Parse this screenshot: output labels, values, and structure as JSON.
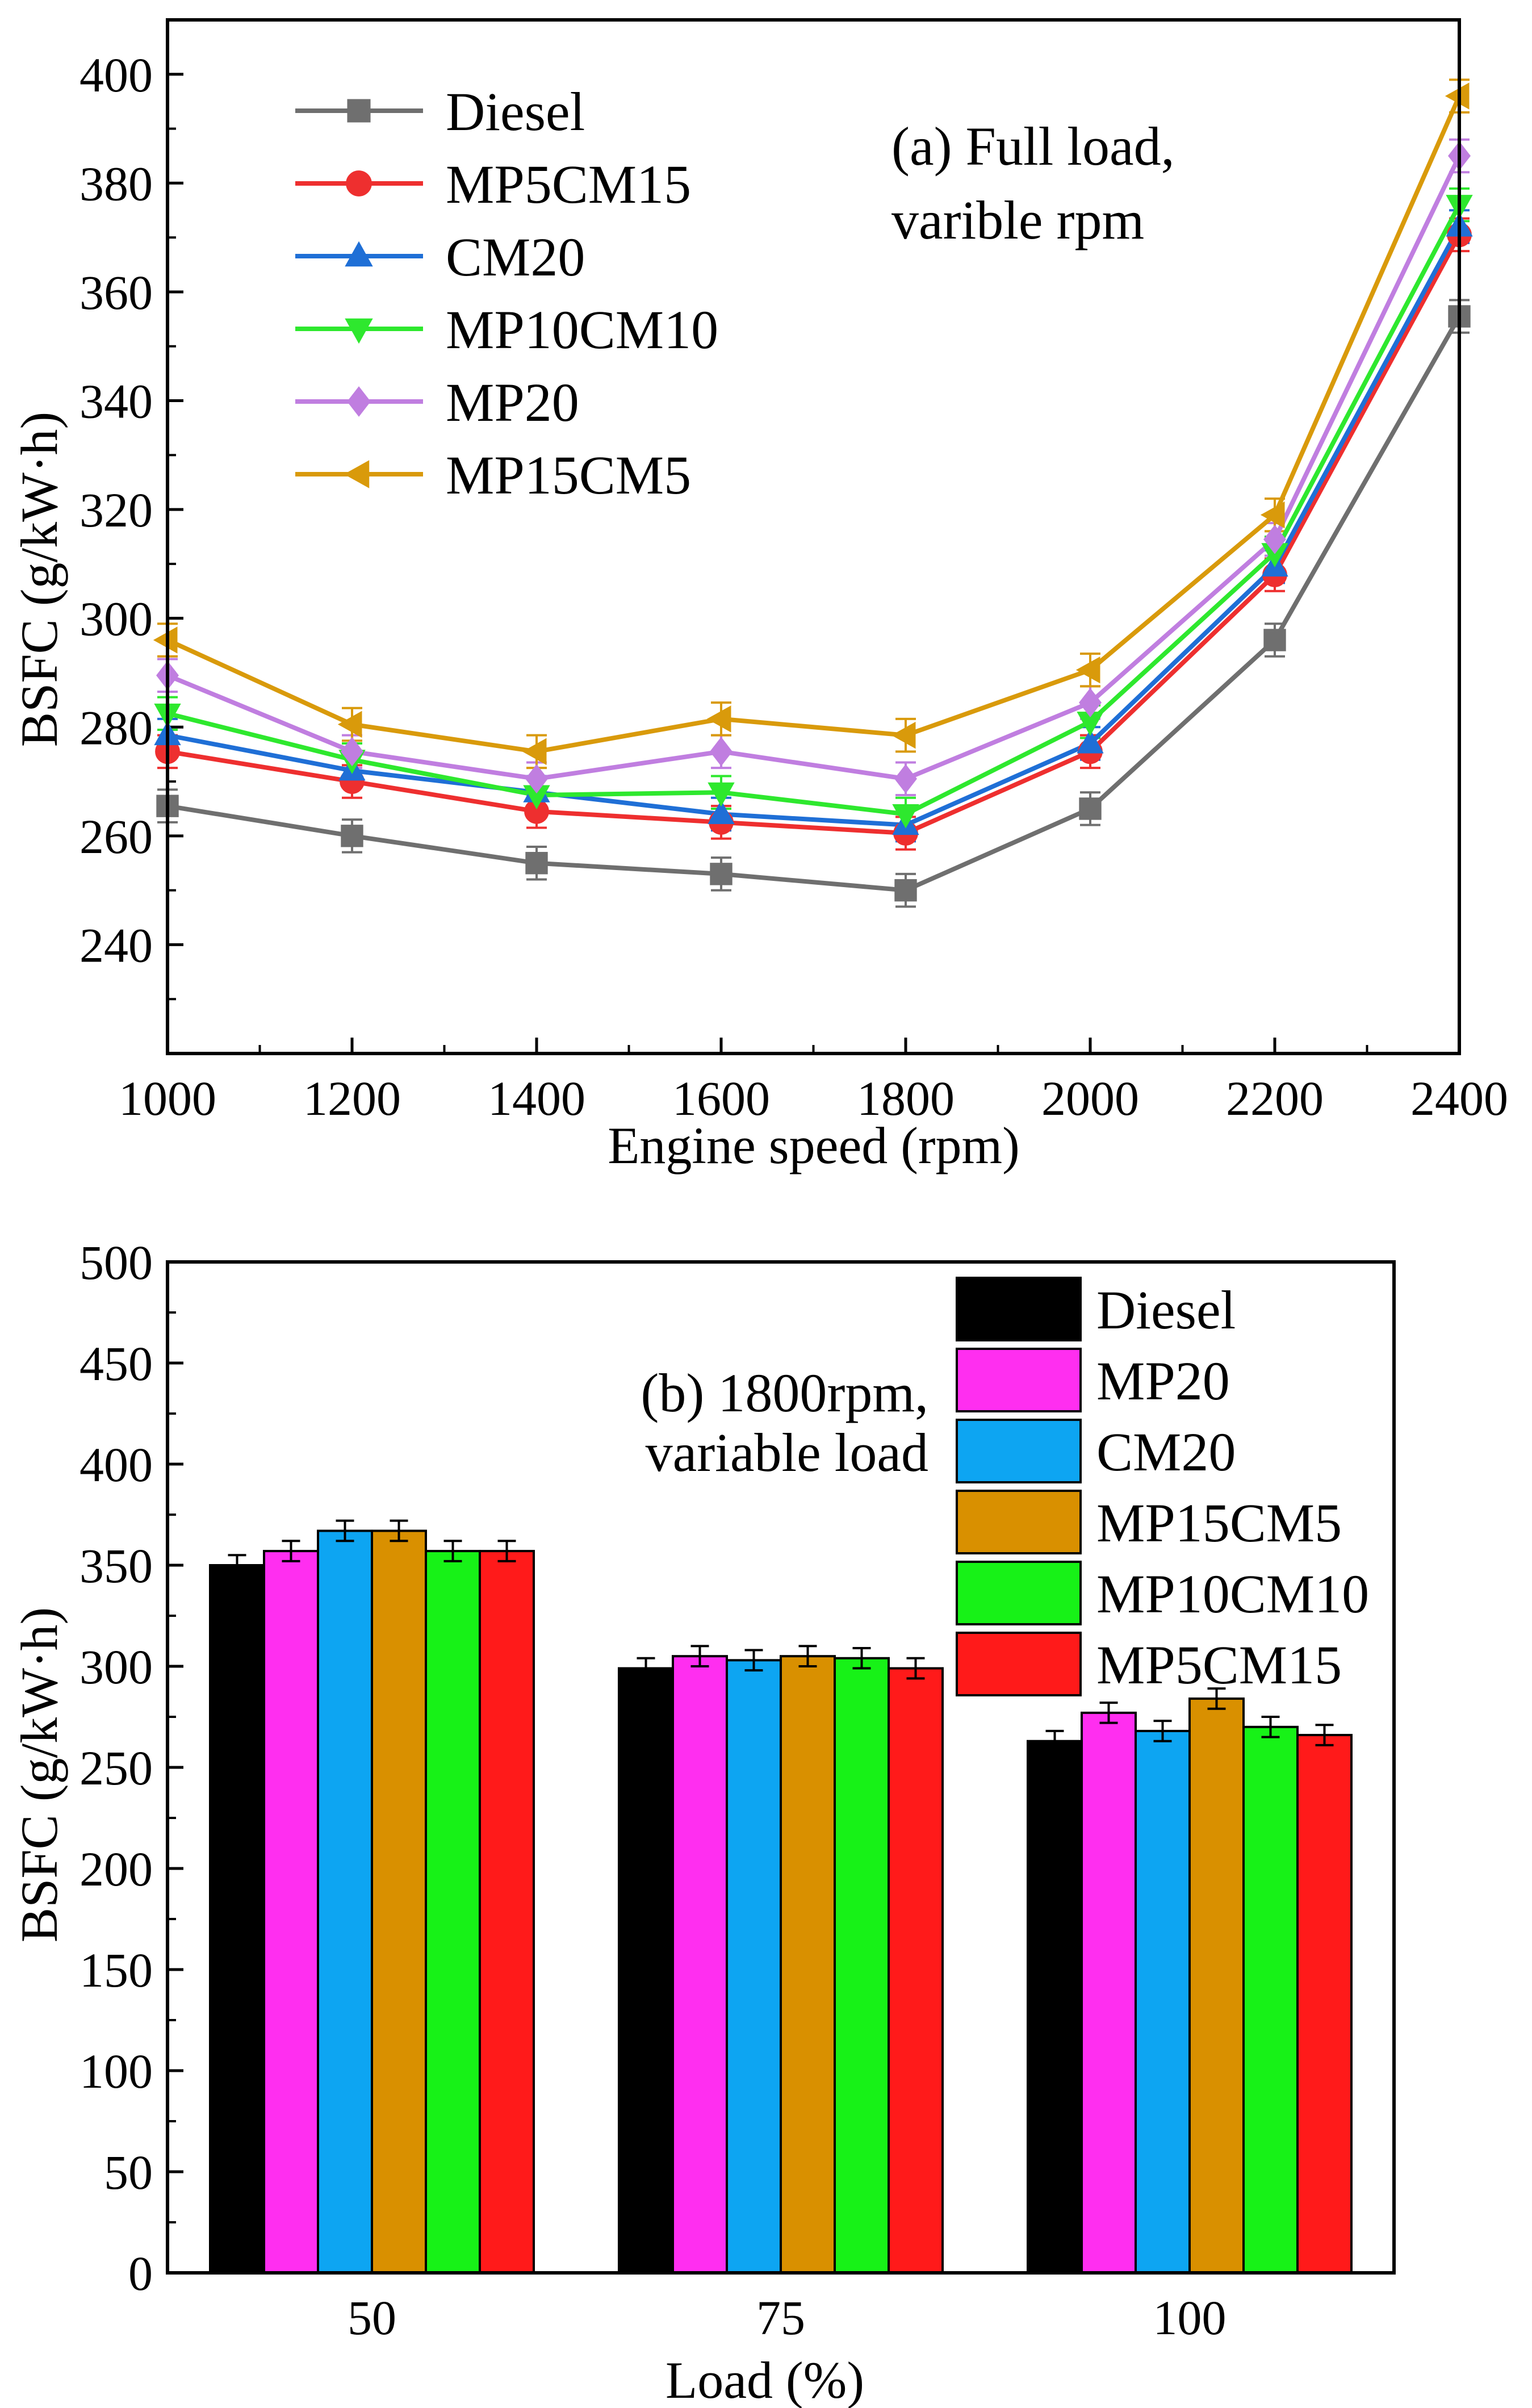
{
  "chart_data": [
    {
      "type": "line",
      "annotation": [
        "(a) Full load,",
        "varible rpm"
      ],
      "xlabel": "Engine speed (rpm)",
      "ylabel": "BSFC (g/kW·h)",
      "x": [
        1000,
        1200,
        1400,
        1600,
        1800,
        2000,
        2200,
        2400
      ],
      "xlim": [
        1000,
        2400
      ],
      "ylim": [
        220,
        410
      ],
      "xticks": [
        "1000",
        "1200",
        "1400",
        "1600",
        "1800",
        "2000",
        "2200",
        "2400"
      ],
      "yticks": [
        "240",
        "260",
        "280",
        "300",
        "320",
        "340",
        "360",
        "380",
        "400"
      ],
      "error": 3,
      "legend_position": "top-left",
      "series": [
        {
          "name": "Diesel",
          "color": "#6f6f6f",
          "marker": "square",
          "values": [
            265.5,
            260,
            255,
            253,
            250,
            265,
            296,
            355.5
          ]
        },
        {
          "name": "MP5CM15",
          "color": "#ee2f2f",
          "marker": "circle",
          "values": [
            275.5,
            270,
            264.5,
            262.5,
            260.5,
            275.5,
            308,
            370.5
          ]
        },
        {
          "name": "CM20",
          "color": "#1f6fd6",
          "marker": "triangle-up",
          "values": [
            278.5,
            272,
            268,
            264,
            262,
            277,
            309.5,
            372
          ]
        },
        {
          "name": "MP10CM10",
          "color": "#2ee82e",
          "marker": "triangle-down",
          "values": [
            282.5,
            274,
            267.5,
            268,
            264,
            281,
            312,
            376
          ]
        },
        {
          "name": "MP20",
          "color": "#c07ee0",
          "marker": "diamond",
          "values": [
            289.5,
            275.5,
            270.5,
            275.5,
            270.5,
            284.5,
            314.5,
            385
          ]
        },
        {
          "name": "MP15CM5",
          "color": "#d99a0b",
          "marker": "triangle-left",
          "values": [
            296,
            280.5,
            275.5,
            281.5,
            278.5,
            290.5,
            319,
            396
          ]
        }
      ]
    },
    {
      "type": "bar",
      "annotation": [
        "(b) 1800rpm,",
        "variable load"
      ],
      "xlabel": "Load (%)",
      "ylabel": "BSFC (g/kW·h)",
      "categories": [
        "50",
        "75",
        "100"
      ],
      "ylim": [
        0,
        500
      ],
      "yticks": [
        "0",
        "50",
        "100",
        "150",
        "200",
        "250",
        "300",
        "350",
        "400",
        "450",
        "500"
      ],
      "error": 5,
      "legend_position": "top-right",
      "series": [
        {
          "name": "Diesel",
          "color": "#000000",
          "values": [
            350,
            299,
            263
          ]
        },
        {
          "name": "MP20",
          "color": "#ff2ef0",
          "values": [
            357,
            305,
            277
          ]
        },
        {
          "name": "CM20",
          "color": "#0da5f2",
          "values": [
            367,
            303,
            268
          ]
        },
        {
          "name": "MP15CM5",
          "color": "#d99000",
          "values": [
            367,
            305,
            284
          ]
        },
        {
          "name": "MP10CM10",
          "color": "#17f217",
          "values": [
            357,
            304,
            270
          ]
        },
        {
          "name": "MP5CM15",
          "color": "#ff1a1a",
          "values": [
            357,
            299,
            266
          ]
        }
      ]
    }
  ]
}
